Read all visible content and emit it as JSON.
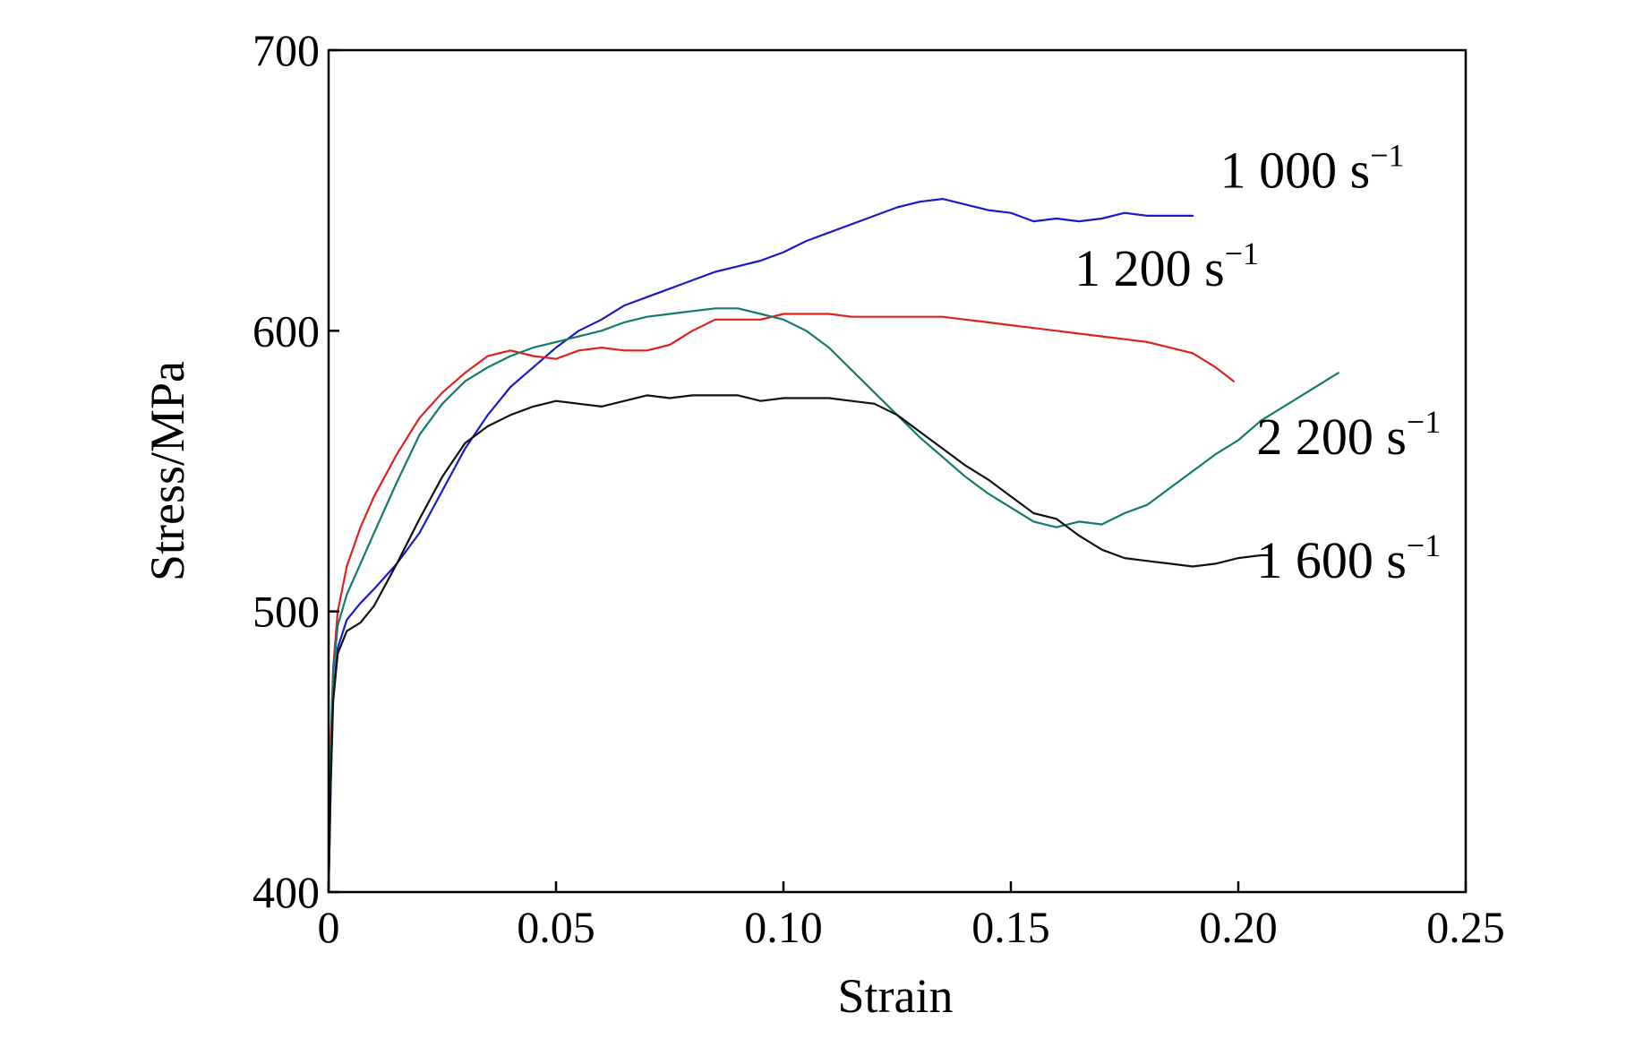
{
  "chart_data": {
    "type": "line",
    "title": "",
    "xlabel": "Strain",
    "ylabel": "Stress/MPa",
    "xlim": [
      0,
      0.25
    ],
    "ylim": [
      400,
      700
    ],
    "x_ticks": [
      0,
      0.05,
      0.1,
      0.15,
      0.2,
      0.25
    ],
    "x_tick_labels": [
      "0",
      "0.05",
      "0.10",
      "0.15",
      "0.20",
      "0.25"
    ],
    "y_ticks": [
      400,
      500,
      600,
      700
    ],
    "y_tick_labels": [
      "400",
      "500",
      "600",
      "700"
    ],
    "grid": false,
    "legend": "inline labels at right end of each curve",
    "series": [
      {
        "name": "1 000 s",
        "superscript": "−1",
        "color": "#1a1acc",
        "points": [
          [
            0,
            400
          ],
          [
            0.0005,
            440
          ],
          [
            0.001,
            470
          ],
          [
            0.002,
            487
          ],
          [
            0.004,
            497
          ],
          [
            0.007,
            503
          ],
          [
            0.01,
            508
          ],
          [
            0.015,
            517
          ],
          [
            0.02,
            528
          ],
          [
            0.025,
            543
          ],
          [
            0.03,
            558
          ],
          [
            0.035,
            570
          ],
          [
            0.04,
            580
          ],
          [
            0.045,
            587
          ],
          [
            0.05,
            594
          ],
          [
            0.055,
            600
          ],
          [
            0.06,
            604
          ],
          [
            0.065,
            609
          ],
          [
            0.07,
            612
          ],
          [
            0.075,
            615
          ],
          [
            0.08,
            618
          ],
          [
            0.085,
            621
          ],
          [
            0.09,
            623
          ],
          [
            0.095,
            625
          ],
          [
            0.1,
            628
          ],
          [
            0.105,
            632
          ],
          [
            0.11,
            635
          ],
          [
            0.115,
            638
          ],
          [
            0.12,
            641
          ],
          [
            0.125,
            644
          ],
          [
            0.13,
            646
          ],
          [
            0.135,
            647
          ],
          [
            0.14,
            645
          ],
          [
            0.145,
            643
          ],
          [
            0.15,
            642
          ],
          [
            0.155,
            639
          ],
          [
            0.16,
            640
          ],
          [
            0.165,
            639
          ],
          [
            0.17,
            640
          ],
          [
            0.175,
            642
          ],
          [
            0.18,
            641
          ],
          [
            0.185,
            641
          ],
          [
            0.19,
            641
          ]
        ]
      },
      {
        "name": "1 200 s",
        "superscript": "−1",
        "color": "#e0201c",
        "points": [
          [
            0,
            400
          ],
          [
            0.0005,
            455
          ],
          [
            0.001,
            480
          ],
          [
            0.002,
            500
          ],
          [
            0.004,
            516
          ],
          [
            0.007,
            530
          ],
          [
            0.01,
            541
          ],
          [
            0.015,
            556
          ],
          [
            0.02,
            569
          ],
          [
            0.025,
            578
          ],
          [
            0.03,
            585
          ],
          [
            0.035,
            591
          ],
          [
            0.04,
            593
          ],
          [
            0.045,
            591
          ],
          [
            0.05,
            590
          ],
          [
            0.055,
            593
          ],
          [
            0.06,
            594
          ],
          [
            0.065,
            593
          ],
          [
            0.07,
            593
          ],
          [
            0.075,
            595
          ],
          [
            0.08,
            600
          ],
          [
            0.085,
            604
          ],
          [
            0.09,
            604
          ],
          [
            0.095,
            604
          ],
          [
            0.1,
            606
          ],
          [
            0.105,
            606
          ],
          [
            0.11,
            606
          ],
          [
            0.115,
            605
          ],
          [
            0.12,
            605
          ],
          [
            0.125,
            605
          ],
          [
            0.13,
            605
          ],
          [
            0.135,
            605
          ],
          [
            0.14,
            604
          ],
          [
            0.145,
            603
          ],
          [
            0.15,
            602
          ],
          [
            0.155,
            601
          ],
          [
            0.16,
            600
          ],
          [
            0.165,
            599
          ],
          [
            0.17,
            598
          ],
          [
            0.175,
            597
          ],
          [
            0.18,
            596
          ],
          [
            0.185,
            594
          ],
          [
            0.19,
            592
          ],
          [
            0.195,
            587
          ],
          [
            0.199,
            582
          ]
        ]
      },
      {
        "name": "2 200 s",
        "superscript": "−1",
        "color": "#127a6e",
        "points": [
          [
            0,
            400
          ],
          [
            0.0005,
            450
          ],
          [
            0.001,
            478
          ],
          [
            0.002,
            495
          ],
          [
            0.004,
            506
          ],
          [
            0.007,
            517
          ],
          [
            0.01,
            528
          ],
          [
            0.015,
            546
          ],
          [
            0.02,
            563
          ],
          [
            0.025,
            574
          ],
          [
            0.03,
            582
          ],
          [
            0.035,
            587
          ],
          [
            0.04,
            591
          ],
          [
            0.045,
            594
          ],
          [
            0.05,
            596
          ],
          [
            0.055,
            598
          ],
          [
            0.06,
            600
          ],
          [
            0.065,
            603
          ],
          [
            0.07,
            605
          ],
          [
            0.075,
            606
          ],
          [
            0.08,
            607
          ],
          [
            0.085,
            608
          ],
          [
            0.09,
            608
          ],
          [
            0.095,
            606
          ],
          [
            0.1,
            604
          ],
          [
            0.105,
            600
          ],
          [
            0.11,
            594
          ],
          [
            0.115,
            586
          ],
          [
            0.12,
            578
          ],
          [
            0.125,
            570
          ],
          [
            0.13,
            562
          ],
          [
            0.135,
            555
          ],
          [
            0.14,
            548
          ],
          [
            0.145,
            542
          ],
          [
            0.15,
            537
          ],
          [
            0.155,
            532
          ],
          [
            0.16,
            530
          ],
          [
            0.165,
            532
          ],
          [
            0.17,
            531
          ],
          [
            0.175,
            535
          ],
          [
            0.18,
            538
          ],
          [
            0.185,
            544
          ],
          [
            0.19,
            550
          ],
          [
            0.195,
            556
          ],
          [
            0.2,
            561
          ],
          [
            0.205,
            568
          ],
          [
            0.21,
            573
          ],
          [
            0.215,
            578
          ],
          [
            0.22,
            583
          ],
          [
            0.222,
            585
          ]
        ]
      },
      {
        "name": "1 600 s",
        "superscript": "−1",
        "color": "#111111",
        "points": [
          [
            0,
            400
          ],
          [
            0.0005,
            440
          ],
          [
            0.001,
            468
          ],
          [
            0.002,
            485
          ],
          [
            0.004,
            493
          ],
          [
            0.007,
            496
          ],
          [
            0.01,
            502
          ],
          [
            0.015,
            517
          ],
          [
            0.02,
            533
          ],
          [
            0.025,
            548
          ],
          [
            0.03,
            560
          ],
          [
            0.035,
            566
          ],
          [
            0.04,
            570
          ],
          [
            0.045,
            573
          ],
          [
            0.05,
            575
          ],
          [
            0.055,
            574
          ],
          [
            0.06,
            573
          ],
          [
            0.065,
            575
          ],
          [
            0.07,
            577
          ],
          [
            0.075,
            576
          ],
          [
            0.08,
            577
          ],
          [
            0.085,
            577
          ],
          [
            0.09,
            577
          ],
          [
            0.095,
            575
          ],
          [
            0.1,
            576
          ],
          [
            0.105,
            576
          ],
          [
            0.11,
            576
          ],
          [
            0.115,
            575
          ],
          [
            0.12,
            574
          ],
          [
            0.125,
            570
          ],
          [
            0.13,
            564
          ],
          [
            0.135,
            558
          ],
          [
            0.14,
            552
          ],
          [
            0.145,
            547
          ],
          [
            0.15,
            541
          ],
          [
            0.155,
            535
          ],
          [
            0.16,
            533
          ],
          [
            0.165,
            527
          ],
          [
            0.17,
            522
          ],
          [
            0.175,
            519
          ],
          [
            0.18,
            518
          ],
          [
            0.185,
            517
          ],
          [
            0.19,
            516
          ],
          [
            0.195,
            517
          ],
          [
            0.2,
            519
          ],
          [
            0.205,
            520
          ],
          [
            0.207,
            520
          ]
        ]
      }
    ],
    "labels": [
      {
        "series": 0,
        "text": "1 000 s",
        "sup": "−1",
        "anchor": [
          0.196,
          651
        ]
      },
      {
        "series": 1,
        "text": "1 200 s",
        "sup": "−1",
        "anchor": [
          0.164,
          616
        ]
      },
      {
        "series": 2,
        "text": "2 200 s",
        "sup": "−1",
        "anchor": [
          0.204,
          556
        ]
      },
      {
        "series": 3,
        "text": "1 600 s",
        "sup": "−1",
        "anchor": [
          0.204,
          512
        ]
      }
    ]
  }
}
